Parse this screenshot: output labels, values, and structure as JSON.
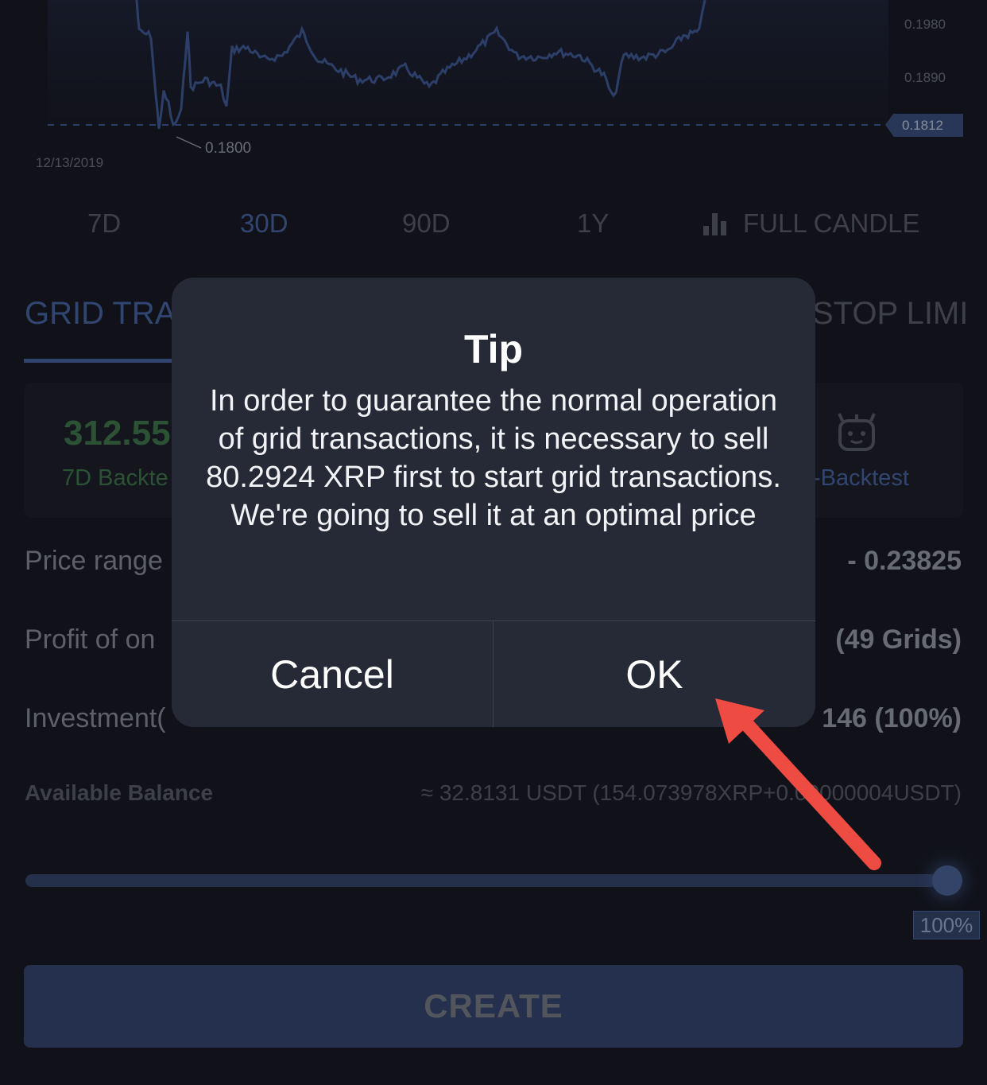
{
  "chart": {
    "axis_labels": [
      "0.1980",
      "0.1890"
    ],
    "current_price": "0.1812",
    "low_price": "0.1800",
    "start_date": "12/13/2019",
    "colors": {
      "line": "#3f5c9a",
      "dashed": "#3f5c9a"
    }
  },
  "periods": {
    "p7": "7D",
    "p30": "30D",
    "p90": "90D",
    "p1y": "1Y",
    "full_candle": "FULL CANDLE",
    "active": "30D"
  },
  "strategy_tabs": {
    "grid": "GRID TRA",
    "stop_limit": "STOP LIMI"
  },
  "backtest": {
    "value": "312.55",
    "label_left": "7D Backte",
    "label_right": "-Backtest"
  },
  "rows": {
    "price_range_label": "Price range",
    "price_range_value": "- 0.23825",
    "profit_label": "Profit of on",
    "profit_value": "(49 Grids)",
    "investment_label": "Investment(",
    "investment_value": "146 (100%)"
  },
  "balance": {
    "label": "Available Balance",
    "value": "≈ 32.8131 USDT (154.073978XRP+0.00000004USDT)"
  },
  "slider": {
    "percent": "100%",
    "level": 1.0
  },
  "create_button": "CREATE",
  "modal": {
    "title": "Tip",
    "body": "In order to guarantee the normal operation of grid transactions, it is necessary to sell 80.2924 XRP first to start grid transactions. We're going to sell it at an optimal price",
    "cancel": "Cancel",
    "ok": "OK"
  },
  "annotation": {
    "arrow_color": "#ee4b42"
  }
}
